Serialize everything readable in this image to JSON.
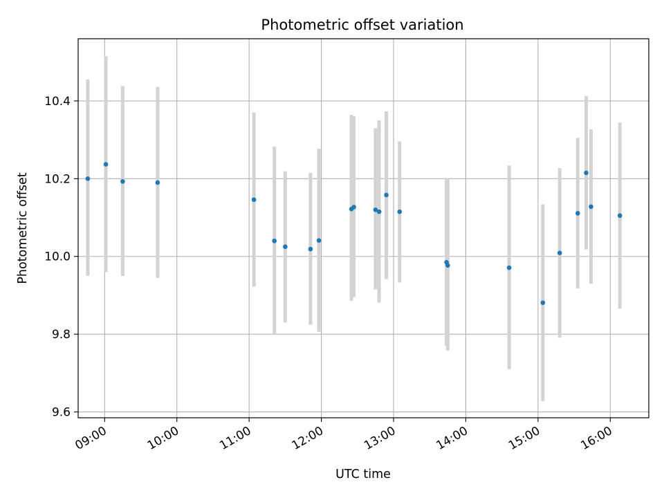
{
  "chart_data": {
    "type": "scatter",
    "title": "Photometric offset variation",
    "xlabel": "UTC time",
    "ylabel": "Photometric offset",
    "x_tick_labels": [
      "09:00",
      "10:00",
      "11:00",
      "12:00",
      "13:00",
      "14:00",
      "15:00",
      "16:00"
    ],
    "y_tick_labels": [
      "9.6",
      "9.8",
      "10.0",
      "10.2",
      "10.4"
    ],
    "x_ticks": [
      "09:00",
      "10:00",
      "11:00",
      "12:00",
      "13:00",
      "14:00",
      "15:00",
      "16:00"
    ],
    "y_ticks": [
      9.6,
      9.8,
      10.0,
      10.2,
      10.4
    ],
    "xlim": [
      "08:38",
      "16:32"
    ],
    "ylim": [
      9.585,
      10.56
    ],
    "grid": true,
    "colors": {
      "point": "#1f77b4",
      "errorbar": "#d3d3d3",
      "grid": "#b0b0b0"
    },
    "points": [
      {
        "x": "08:46",
        "y": 10.2,
        "err_low": 9.95,
        "err_high": 10.455
      },
      {
        "x": "09:01",
        "y": 10.237,
        "err_low": 9.96,
        "err_high": 10.515
      },
      {
        "x": "09:15",
        "y": 10.193,
        "err_low": 9.95,
        "err_high": 10.438
      },
      {
        "x": "09:44",
        "y": 10.19,
        "err_low": 9.945,
        "err_high": 10.436
      },
      {
        "x": "11:04",
        "y": 10.146,
        "err_low": 9.922,
        "err_high": 10.37
      },
      {
        "x": "11:21",
        "y": 10.04,
        "err_low": 9.8,
        "err_high": 10.283
      },
      {
        "x": "11:30",
        "y": 10.025,
        "err_low": 9.83,
        "err_high": 10.219
      },
      {
        "x": "11:51",
        "y": 10.019,
        "err_low": 9.824,
        "err_high": 10.215
      },
      {
        "x": "11:58",
        "y": 10.041,
        "err_low": 9.806,
        "err_high": 10.277
      },
      {
        "x": "12:25",
        "y": 10.122,
        "err_low": 9.886,
        "err_high": 10.364
      },
      {
        "x": "12:27",
        "y": 10.127,
        "err_low": 9.896,
        "err_high": 10.361
      },
      {
        "x": "12:45",
        "y": 10.12,
        "err_low": 9.915,
        "err_high": 10.33
      },
      {
        "x": "12:48",
        "y": 10.115,
        "err_low": 9.881,
        "err_high": 10.35
      },
      {
        "x": "12:54",
        "y": 10.158,
        "err_low": 9.942,
        "err_high": 10.373
      },
      {
        "x": "13:05",
        "y": 10.115,
        "err_low": 9.933,
        "err_high": 10.296
      },
      {
        "x": "13:44",
        "y": 9.985,
        "err_low": 9.77,
        "err_high": 10.202
      },
      {
        "x": "13:45",
        "y": 9.977,
        "err_low": 9.758,
        "err_high": 10.199
      },
      {
        "x": "14:36",
        "y": 9.971,
        "err_low": 9.71,
        "err_high": 10.234
      },
      {
        "x": "15:04",
        "y": 9.881,
        "err_low": 9.628,
        "err_high": 10.134
      },
      {
        "x": "15:18",
        "y": 10.009,
        "err_low": 9.791,
        "err_high": 10.227
      },
      {
        "x": "15:33",
        "y": 10.111,
        "err_low": 9.918,
        "err_high": 10.305
      },
      {
        "x": "15:40",
        "y": 10.215,
        "err_low": 10.018,
        "err_high": 10.412
      },
      {
        "x": "15:44",
        "y": 10.128,
        "err_low": 9.93,
        "err_high": 10.327
      },
      {
        "x": "16:08",
        "y": 10.105,
        "err_low": 9.866,
        "err_high": 10.345
      }
    ]
  }
}
